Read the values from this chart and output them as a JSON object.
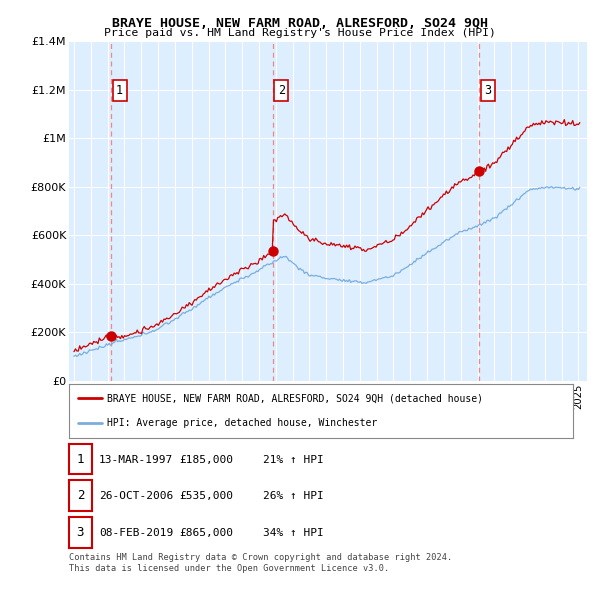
{
  "title": "BRAYE HOUSE, NEW FARM ROAD, ALRESFORD, SO24 9QH",
  "subtitle": "Price paid vs. HM Land Registry's House Price Index (HPI)",
  "ylim": [
    0,
    1400000
  ],
  "yticks": [
    0,
    200000,
    400000,
    600000,
    800000,
    1000000,
    1200000,
    1400000
  ],
  "ytick_labels": [
    "£0",
    "£200K",
    "£400K",
    "£600K",
    "£800K",
    "£1M",
    "£1.2M",
    "£1.4M"
  ],
  "xlim_start": 1994.7,
  "xlim_end": 2025.5,
  "sale_dates": [
    1997.2,
    2006.82,
    2019.1
  ],
  "sale_prices": [
    185000,
    535000,
    865000
  ],
  "sale_labels": [
    "1",
    "2",
    "3"
  ],
  "legend_red_label": "BRAYE HOUSE, NEW FARM ROAD, ALRESFORD, SO24 9QH (detached house)",
  "legend_blue_label": "HPI: Average price, detached house, Winchester",
  "table_rows": [
    [
      "1",
      "13-MAR-1997",
      "£185,000",
      "21% ↑ HPI"
    ],
    [
      "2",
      "26-OCT-2006",
      "£535,000",
      "26% ↑ HPI"
    ],
    [
      "3",
      "08-FEB-2019",
      "£865,000",
      "34% ↑ HPI"
    ]
  ],
  "footer": "Contains HM Land Registry data © Crown copyright and database right 2024.\nThis data is licensed under the Open Government Licence v3.0.",
  "red_color": "#cc0000",
  "blue_color": "#7aaedc",
  "bg_color": "#ddeeff",
  "grid_color": "#ffffff",
  "dashed_color": "#ee8888"
}
